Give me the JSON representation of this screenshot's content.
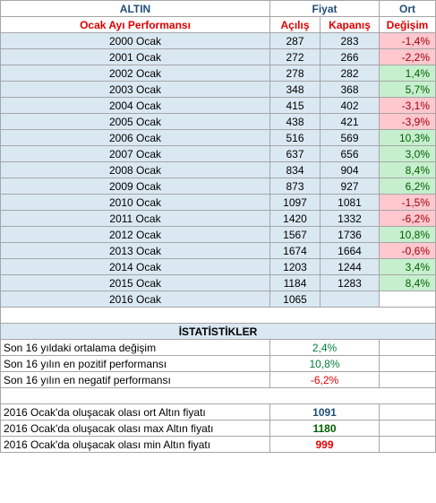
{
  "header": {
    "title": "ALTIN",
    "price_group": "Fiyat",
    "avg_group": "Ort",
    "subtitle": "Ocak Ayı Performansı",
    "col_open": "Açılış",
    "col_close": "Kapanış",
    "col_change": "Değişim"
  },
  "rows": [
    {
      "label": "2000 Ocak",
      "open": "287",
      "close": "283",
      "change": "-1,4%",
      "sign": "neg"
    },
    {
      "label": "2001 Ocak",
      "open": "272",
      "close": "266",
      "change": "-2,2%",
      "sign": "neg"
    },
    {
      "label": "2002 Ocak",
      "open": "278",
      "close": "282",
      "change": "1,4%",
      "sign": "pos"
    },
    {
      "label": "2003 Ocak",
      "open": "348",
      "close": "368",
      "change": "5,7%",
      "sign": "pos"
    },
    {
      "label": "2004 Ocak",
      "open": "415",
      "close": "402",
      "change": "-3,1%",
      "sign": "neg"
    },
    {
      "label": "2005 Ocak",
      "open": "438",
      "close": "421",
      "change": "-3,9%",
      "sign": "neg"
    },
    {
      "label": "2006 Ocak",
      "open": "516",
      "close": "569",
      "change": "10,3%",
      "sign": "pos"
    },
    {
      "label": "2007 Ocak",
      "open": "637",
      "close": "656",
      "change": "3,0%",
      "sign": "pos"
    },
    {
      "label": "2008 Ocak",
      "open": "834",
      "close": "904",
      "change": "8,4%",
      "sign": "pos"
    },
    {
      "label": "2009 Ocak",
      "open": "873",
      "close": "927",
      "change": "6,2%",
      "sign": "pos"
    },
    {
      "label": "2010 Ocak",
      "open": "1097",
      "close": "1081",
      "change": "-1,5%",
      "sign": "neg"
    },
    {
      "label": "2011 Ocak",
      "open": "1420",
      "close": "1332",
      "change": "-6,2%",
      "sign": "neg"
    },
    {
      "label": "2012 Ocak",
      "open": "1567",
      "close": "1736",
      "change": "10,8%",
      "sign": "pos"
    },
    {
      "label": "2013 Ocak",
      "open": "1674",
      "close": "1664",
      "change": "-0,6%",
      "sign": "neg"
    },
    {
      "label": "2014 Ocak",
      "open": "1203",
      "close": "1244",
      "change": "3,4%",
      "sign": "pos"
    },
    {
      "label": "2015 Ocak",
      "open": "1184",
      "close": "1283",
      "change": "8,4%",
      "sign": "pos"
    },
    {
      "label": "2016 Ocak",
      "open": "1065",
      "close": "",
      "change": "",
      "sign": "none"
    }
  ],
  "stats": {
    "title": "İSTATİSTİKLER",
    "avg_label": "Son 16 yıldaki ortalama  değişim",
    "avg_value": "2,4%",
    "pos_label": "Son 16 yılın en pozitif performansı",
    "pos_value": "10,8%",
    "neg_label": "Son 16 yılın en negatif performansı",
    "neg_value": "-6,2%",
    "est_avg_label": "2016 Ocak'da oluşacak olası ort Altın fiyatı",
    "est_avg_value": "1091",
    "est_max_label": "2016 Ocak'da oluşacak olası max Altın fiyatı",
    "est_max_value": "1180",
    "est_min_label": "2016 Ocak'da oluşacak olası min Altın fiyatı",
    "est_min_value": "999"
  },
  "colors": {
    "header_blue": "#1f4e79",
    "header_red": "#e00000",
    "row_fill": "#dae8f2",
    "positive_fill": "#c6efce",
    "negative_fill": "#ffc7ce"
  }
}
